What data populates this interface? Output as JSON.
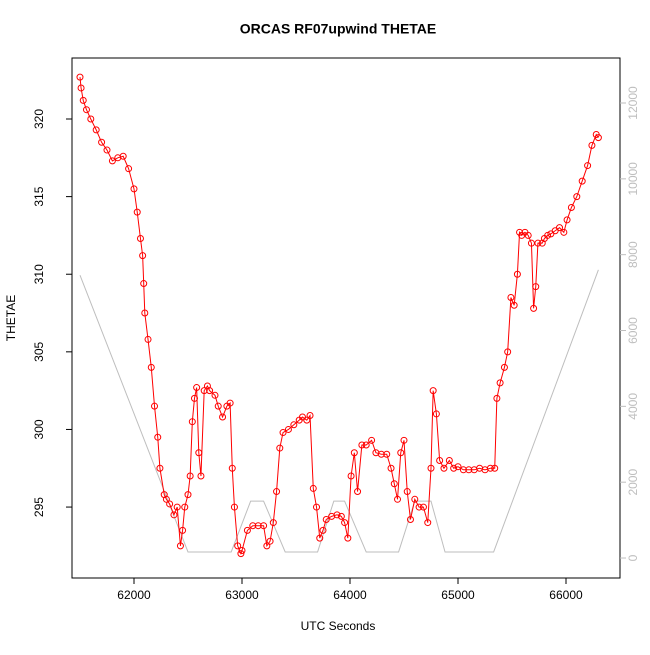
{
  "chart_data": {
    "type": "line",
    "title": "ORCAS RF07upwind THETAE",
    "xlabel": "UTC Seconds",
    "ylabel": "THETAE",
    "xlim": [
      61426,
      66500
    ],
    "ylim": [
      290.43,
      323.93
    ],
    "y2lim": [
      -527,
      13187
    ],
    "xticks": [
      62000,
      63000,
      64000,
      65000,
      66000
    ],
    "yticks": [
      295,
      300,
      305,
      310,
      315,
      320
    ],
    "y2ticks": [
      0,
      2000,
      4000,
      6000,
      8000,
      10000,
      12000
    ],
    "series": [
      {
        "color": "#ff0000",
        "marker": "circle",
        "x": [
          61500,
          61510,
          61530,
          61560,
          61600,
          61650,
          61700,
          61750,
          61800,
          61850,
          61900,
          61950,
          62000,
          62030,
          62060,
          62080,
          62090,
          62100,
          62130,
          62160,
          62190,
          62220,
          62240,
          62280,
          62300,
          62330,
          62370,
          62400,
          62430,
          62450,
          62470,
          62500,
          62520,
          62540,
          62560,
          62580,
          62600,
          62620,
          62650,
          62680,
          62700,
          62750,
          62780,
          62820,
          62860,
          62890,
          62910,
          62930,
          62960,
          62990,
          63000,
          63050,
          63100,
          63150,
          63200,
          63230,
          63260,
          63290,
          63320,
          63350,
          63380,
          63430,
          63480,
          63530,
          63560,
          63600,
          63630,
          63660,
          63690,
          63720,
          63750,
          63780,
          63830,
          63880,
          63920,
          63950,
          63980,
          64010,
          64040,
          64070,
          64110,
          64150,
          64200,
          64240,
          64290,
          64340,
          64380,
          64410,
          64440,
          64470,
          64500,
          64530,
          64560,
          64600,
          64640,
          64680,
          64720,
          64750,
          64770,
          64800,
          64830,
          64870,
          64920,
          64960,
          65000,
          65050,
          65100,
          65150,
          65200,
          65250,
          65300,
          65340,
          65360,
          65390,
          65430,
          65460,
          65490,
          65520,
          65550,
          65570,
          65590,
          65620,
          65650,
          65680,
          65700,
          65720,
          65740,
          65780,
          65800,
          65830,
          65860,
          65900,
          65940,
          65980,
          66010,
          66050,
          66100,
          66150,
          66200,
          66240,
          66280,
          66300
        ],
        "values": [
          322.7,
          322.0,
          321.2,
          320.6,
          320.0,
          319.3,
          318.5,
          318.0,
          317.3,
          317.5,
          317.6,
          316.8,
          315.5,
          314.0,
          312.3,
          311.2,
          309.4,
          307.5,
          305.8,
          304.0,
          301.5,
          299.5,
          297.5,
          295.8,
          295.5,
          295.2,
          294.5,
          295.0,
          292.5,
          293.5,
          295.0,
          295.8,
          297.0,
          300.5,
          302.0,
          302.7,
          298.5,
          297.0,
          302.5,
          302.8,
          302.5,
          302.2,
          301.5,
          300.8,
          301.5,
          301.7,
          297.5,
          295.0,
          292.5,
          292.0,
          292.2,
          293.5,
          293.8,
          293.8,
          293.8,
          292.5,
          292.8,
          294.0,
          296.0,
          298.8,
          299.8,
          300.0,
          300.3,
          300.6,
          300.8,
          300.6,
          300.9,
          296.2,
          295.0,
          293.0,
          293.5,
          294.2,
          294.4,
          294.5,
          294.4,
          294.0,
          293.0,
          297.0,
          298.5,
          296.0,
          299.0,
          299.0,
          299.3,
          298.5,
          298.4,
          298.4,
          297.5,
          296.5,
          295.5,
          298.5,
          299.3,
          296.0,
          294.2,
          295.5,
          295.0,
          295.0,
          294.0,
          297.5,
          302.5,
          301.0,
          298.0,
          297.5,
          298.0,
          297.5,
          297.6,
          297.4,
          297.4,
          297.4,
          297.5,
          297.4,
          297.5,
          297.5,
          302.0,
          303.0,
          304.0,
          305.0,
          308.5,
          308.0,
          310.0,
          312.7,
          312.5,
          312.7,
          312.5,
          312.0,
          307.8,
          309.2,
          312.0,
          312.0,
          312.3,
          312.5,
          312.6,
          312.8,
          313.0,
          312.7,
          313.5,
          314.3,
          315.0,
          316.0,
          317.0,
          318.3,
          319.0,
          318.8
        ]
      },
      {
        "color": "#bebebe",
        "axis": "y2",
        "x": [
          61500,
          62500,
          62900,
          63080,
          63200,
          63400,
          63700,
          63850,
          63950,
          64150,
          64450,
          64600,
          64750,
          64880,
          65330,
          66300
        ],
        "values": [
          7460,
          160,
          160,
          1500,
          1500,
          160,
          160,
          1500,
          1500,
          160,
          160,
          1500,
          1500,
          160,
          160,
          7600
        ]
      }
    ]
  }
}
